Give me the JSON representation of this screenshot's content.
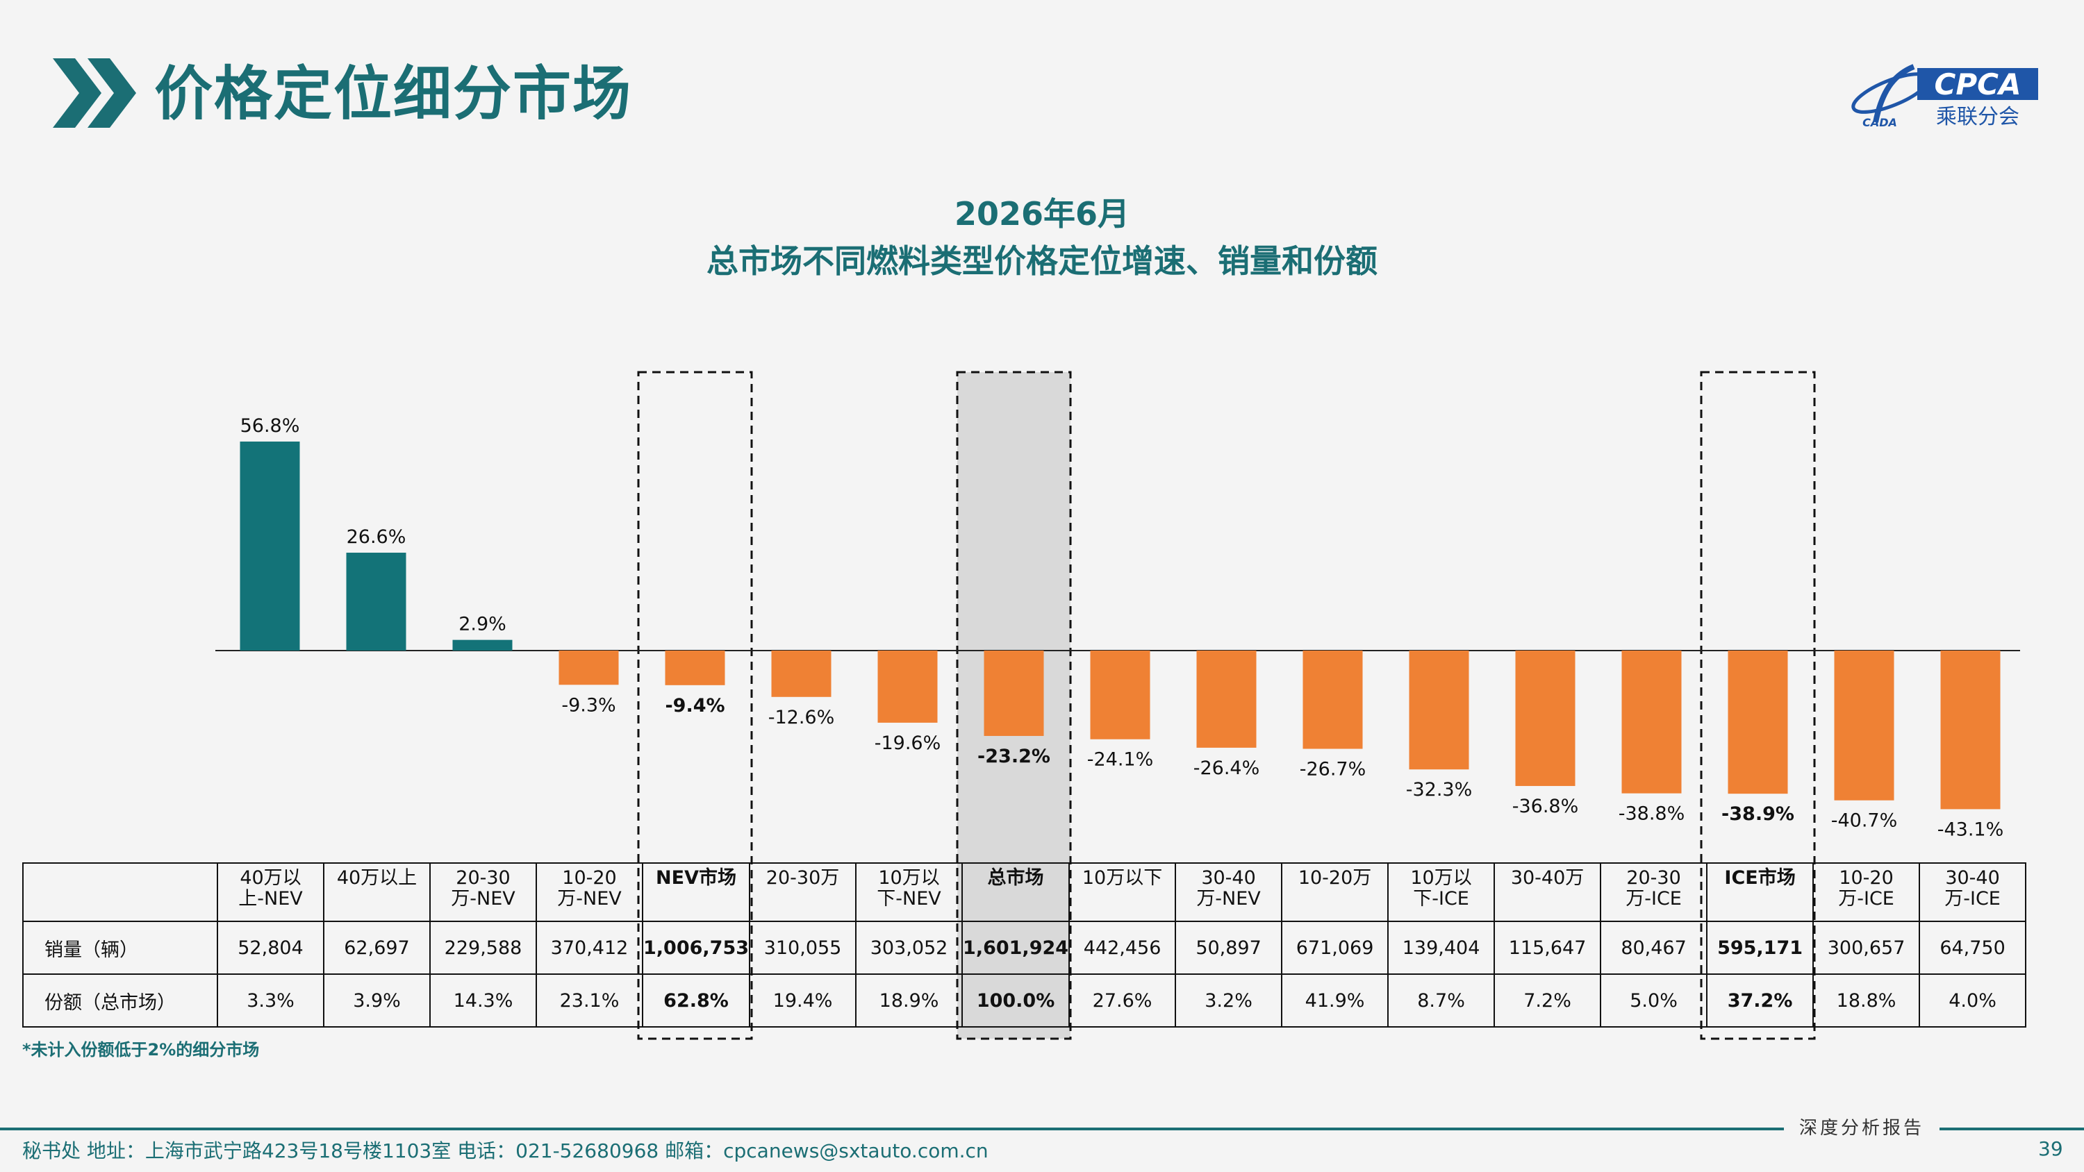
{
  "header": {
    "title": "价格定位细分市场"
  },
  "logo": {
    "brand_text": "CPCA",
    "cn_text": "乘联分会",
    "sub_text": "CADA"
  },
  "colors": {
    "teal": "#137378",
    "orange": "#ef8134",
    "title": "#1b6e74",
    "highlight": "#d9d9d9"
  },
  "chart_data": {
    "type": "bar",
    "title": "2026年6月",
    "subtitle": "总市场不同燃料类型价格定位增速、销量和份额",
    "categories": [
      "40万以上-NEV",
      "40万以上",
      "20-30万-NEV",
      "10-20万-NEV",
      "NEV市场",
      "20-30万",
      "10万以下-NEV",
      "总市场",
      "10万以下",
      "30-40万-NEV",
      "10-20万",
      "10万以下-ICE",
      "30-40万",
      "20-30万-ICE",
      "ICE市场",
      "10-20万-ICE",
      "30-40万-ICE"
    ],
    "values": [
      56.8,
      26.6,
      2.9,
      -9.3,
      -9.4,
      -12.6,
      -19.6,
      -23.2,
      -24.1,
      -26.4,
      -26.7,
      -32.3,
      -36.8,
      -38.8,
      -38.9,
      -40.7,
      -43.1
    ],
    "data_labels": [
      "56.8%",
      "26.6%",
      "2.9%",
      "-9.3%",
      "-9.4%",
      "-12.6%",
      "-19.6%",
      "-23.2%",
      "-24.1%",
      "-26.4%",
      "-26.7%",
      "-32.3%",
      "-36.8%",
      "-38.8%",
      "-38.9%",
      "-40.7%",
      "-43.1%"
    ],
    "highlighted": [
      "NEV市场",
      "总市场",
      "ICE市场"
    ],
    "positive_color": "#137378",
    "negative_color": "#ef8134",
    "ylabel": "",
    "grid": false,
    "ylim": [
      -50,
      70
    ]
  },
  "table": {
    "headers": [
      "40万以\n上-NEV",
      "40万以上",
      "20-30\n万-NEV",
      "10-20\n万-NEV",
      "NEV市场",
      "20-30万",
      "10万以\n下-NEV",
      "总市场",
      "10万以下",
      "30-40\n万-NEV",
      "10-20万",
      "10万以\n下-ICE",
      "30-40万",
      "20-30\n万-ICE",
      "ICE市场",
      "10-20\n万-ICE",
      "30-40\n万-ICE"
    ],
    "rows": [
      {
        "label": "销量（辆）",
        "values": [
          "52,804",
          "62,697",
          "229,588",
          "370,412",
          "1,006,753",
          "310,055",
          "303,052",
          "1,601,924",
          "442,456",
          "50,897",
          "671,069",
          "139,404",
          "115,647",
          "80,467",
          "595,171",
          "300,657",
          "64,750"
        ]
      },
      {
        "label": "份额（总市场）",
        "values": [
          "3.3%",
          "3.9%",
          "14.3%",
          "23.1%",
          "62.8%",
          "19.4%",
          "18.9%",
          "100.0%",
          "27.6%",
          "3.2%",
          "41.9%",
          "8.7%",
          "7.2%",
          "5.0%",
          "37.2%",
          "18.8%",
          "4.0%"
        ]
      }
    ]
  },
  "footnote": "*未计入份额低于2%的细分市场",
  "footer": {
    "report_label": "深度分析报告",
    "address": "秘书处   地址：上海市武宁路423号18号楼1103室  电话：021-52680968   邮箱：cpcanews@sxtauto.com.cn",
    "page_number": "39"
  }
}
